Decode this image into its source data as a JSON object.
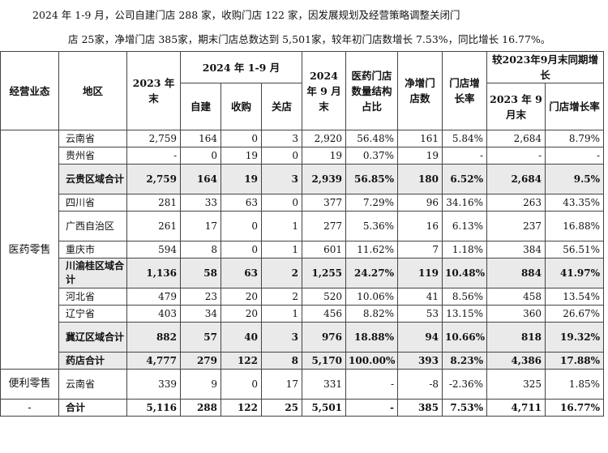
{
  "intro": {
    "line1": "2024 年 1-9 月，公司自建门店 288 家，收购门店 122 家，因发展规划及经营策略调整关闭门",
    "line2": "店 25家，净增门店 385家，期末门店总数达到 5,501家，较年初门店数增长 7.53%，同比增长 16.77%。"
  },
  "headers": {
    "segment": "经营业态",
    "region": "地区",
    "end2023": "2023 年末",
    "period": "2024 年 1-9 月",
    "self_built": "自建",
    "acquired": "收购",
    "closed": "关店",
    "sep2024": "2024 年 9 月末",
    "share": "医药门店数量结构占比",
    "net_added": "净增门店数",
    "growth_rate": "门店增长率",
    "yoy_group": "较2023年9月末同期增长",
    "sep2023": "2023 年 9月末",
    "yoy_rate": "门店增长率"
  },
  "segments": {
    "pharmacy": "医药零售",
    "convenience": "便利零售",
    "total": "-"
  },
  "rows": [
    {
      "region": "云南省",
      "end2023": "2,759",
      "self": "164",
      "acq": "0",
      "closed": "3",
      "sep2024": "2,920",
      "share": "56.48%",
      "net": "161",
      "growth": "5.84%",
      "sep2023": "2,684",
      "yoy": "8.79%"
    },
    {
      "region": "贵州省",
      "end2023": "-",
      "self": "0",
      "acq": "19",
      "closed": "0",
      "sep2024": "19",
      "share": "0.37%",
      "net": "19",
      "growth": "-",
      "sep2023": "-",
      "yoy": "-"
    },
    {
      "region": "云贵区域合计",
      "end2023": "2,759",
      "self": "164",
      "acq": "19",
      "closed": "3",
      "sep2024": "2,939",
      "share": "56.85%",
      "net": "180",
      "growth": "6.52%",
      "sep2023": "2,684",
      "yoy": "9.5%"
    },
    {
      "region": "四川省",
      "end2023": "281",
      "self": "33",
      "acq": "63",
      "closed": "0",
      "sep2024": "377",
      "share": "7.29%",
      "net": "96",
      "growth": "34.16%",
      "sep2023": "263",
      "yoy": "43.35%"
    },
    {
      "region": "广西自治区",
      "end2023": "261",
      "self": "17",
      "acq": "0",
      "closed": "1",
      "sep2024": "277",
      "share": "5.36%",
      "net": "16",
      "growth": "6.13%",
      "sep2023": "237",
      "yoy": "16.88%"
    },
    {
      "region": "重庆市",
      "end2023": "594",
      "self": "8",
      "acq": "0",
      "closed": "1",
      "sep2024": "601",
      "share": "11.62%",
      "net": "7",
      "growth": "1.18%",
      "sep2023": "384",
      "yoy": "56.51%"
    },
    {
      "region": "川渝桂区域合计",
      "end2023": "1,136",
      "self": "58",
      "acq": "63",
      "closed": "2",
      "sep2024": "1,255",
      "share": "24.27%",
      "net": "119",
      "growth": "10.48%",
      "sep2023": "884",
      "yoy": "41.97%"
    },
    {
      "region": "河北省",
      "end2023": "479",
      "self": "23",
      "acq": "20",
      "closed": "2",
      "sep2024": "520",
      "share": "10.06%",
      "net": "41",
      "growth": "8.56%",
      "sep2023": "458",
      "yoy": "13.54%"
    },
    {
      "region": "辽宁省",
      "end2023": "403",
      "self": "34",
      "acq": "20",
      "closed": "1",
      "sep2024": "456",
      "share": "8.82%",
      "net": "53",
      "growth": "13.15%",
      "sep2023": "360",
      "yoy": "26.67%"
    },
    {
      "region": "冀辽区域合计",
      "end2023": "882",
      "self": "57",
      "acq": "40",
      "closed": "3",
      "sep2024": "976",
      "share": "18.88%",
      "net": "94",
      "growth": "10.66%",
      "sep2023": "818",
      "yoy": "19.32%"
    },
    {
      "region": "药店合计",
      "end2023": "4,777",
      "self": "279",
      "acq": "122",
      "closed": "8",
      "sep2024": "5,170",
      "share": "100.00%",
      "net": "393",
      "growth": "8.23%",
      "sep2023": "4,386",
      "yoy": "17.88%"
    },
    {
      "region": "云南省",
      "end2023": "339",
      "self": "9",
      "acq": "0",
      "closed": "17",
      "sep2024": "331",
      "share": "-",
      "net": "-8",
      "growth": "-2.36%",
      "sep2023": "325",
      "yoy": "1.85%"
    },
    {
      "region": "合计",
      "end2023": "5,116",
      "self": "288",
      "acq": "122",
      "closed": "25",
      "sep2024": "5,501",
      "share": "-",
      "net": "385",
      "growth": "7.53%",
      "sep2023": "4,711",
      "yoy": "16.77%"
    }
  ]
}
